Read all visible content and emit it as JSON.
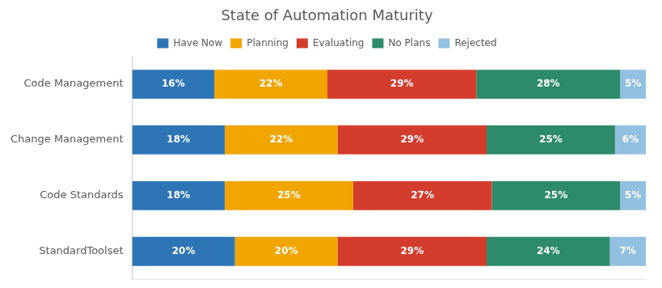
{
  "chart_data": {
    "type": "bar",
    "title": "State of Automation Maturity",
    "orientation": "horizontal",
    "stacked": true,
    "categories": [
      "Code Management",
      "Change Management",
      "Code Standards",
      "StandardToolset"
    ],
    "series": [
      {
        "name": "Have Now",
        "color": "#2E75B6",
        "values": [
          16,
          18,
          18,
          20
        ],
        "value_labels": [
          "16%",
          "18%",
          "18%",
          "20%"
        ]
      },
      {
        "name": "Planning",
        "color": "#F0A500",
        "values": [
          22,
          22,
          25,
          20
        ],
        "value_labels": [
          "22%",
          "22%",
          "25%",
          "20%"
        ]
      },
      {
        "name": "Evaluating",
        "color": "#D43D2E",
        "values": [
          29,
          29,
          27,
          29
        ],
        "value_labels": [
          "29%",
          "29%",
          "27%",
          "29%"
        ]
      },
      {
        "name": "No Plans",
        "color": "#2E8B6A",
        "values": [
          28,
          25,
          25,
          24
        ],
        "value_labels": [
          "28%",
          "25%",
          "25%",
          "24%"
        ]
      },
      {
        "name": "Rejected",
        "color": "#92C0E0",
        "values": [
          5,
          6,
          5,
          7
        ],
        "value_labels": [
          "5%",
          "6%",
          "5%",
          "7%"
        ]
      }
    ],
    "xlim": [
      0,
      100
    ],
    "data_labels": true,
    "tick_labels": "y",
    "grid": false,
    "legend": "top"
  }
}
